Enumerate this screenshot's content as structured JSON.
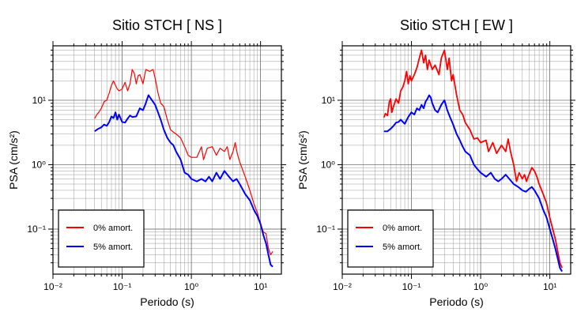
{
  "chart_data": [
    {
      "type": "line",
      "title": "Sitio STCH [ NS ]",
      "xlabel": "Periodo (s)",
      "ylabel": "PSA (cm/s²)",
      "xscale": "log",
      "yscale": "log",
      "xlim": [
        0.01,
        20
      ],
      "ylim": [
        0.02,
        70
      ],
      "x_tick_labels": [
        "10⁻²",
        "10⁻¹",
        "10⁰",
        "10¹"
      ],
      "x_tick_values": [
        0.01,
        0.1,
        1,
        10
      ],
      "y_tick_labels": [
        "10⁻¹",
        "10⁰",
        "10¹"
      ],
      "y_tick_values": [
        0.1,
        1,
        10
      ],
      "grid": true,
      "legend_position": "bottom-left",
      "series": [
        {
          "name": "0% amort.",
          "color": "#ff0000",
          "points": [
            [
              0.04,
              5.2
            ],
            [
              0.043,
              6.0
            ],
            [
              0.046,
              6.5
            ],
            [
              0.05,
              7.5
            ],
            [
              0.055,
              9.5
            ],
            [
              0.06,
              10
            ],
            [
              0.065,
              13
            ],
            [
              0.07,
              17
            ],
            [
              0.075,
              20
            ],
            [
              0.08,
              17
            ],
            [
              0.085,
              15
            ],
            [
              0.09,
              14
            ],
            [
              0.1,
              15
            ],
            [
              0.11,
              19
            ],
            [
              0.12,
              14
            ],
            [
              0.13,
              18
            ],
            [
              0.14,
              30
            ],
            [
              0.15,
              26
            ],
            [
              0.16,
              18
            ],
            [
              0.17,
              24
            ],
            [
              0.18,
              25
            ],
            [
              0.2,
              18
            ],
            [
              0.22,
              30
            ],
            [
              0.25,
              28
            ],
            [
              0.28,
              30
            ],
            [
              0.3,
              22
            ],
            [
              0.33,
              13
            ],
            [
              0.36,
              9
            ],
            [
              0.4,
              8
            ],
            [
              0.45,
              5
            ],
            [
              0.5,
              3.5
            ],
            [
              0.55,
              3.2
            ],
            [
              0.6,
              3
            ],
            [
              0.7,
              2.6
            ],
            [
              0.8,
              1.9
            ],
            [
              0.9,
              1.4
            ],
            [
              1.0,
              1.3
            ],
            [
              1.2,
              1.3
            ],
            [
              1.4,
              1.9
            ],
            [
              1.5,
              1.2
            ],
            [
              1.7,
              1.8
            ],
            [
              2.0,
              1.9
            ],
            [
              2.3,
              1.4
            ],
            [
              2.6,
              1.8
            ],
            [
              3.0,
              1.6
            ],
            [
              3.3,
              1.9
            ],
            [
              3.6,
              1.2
            ],
            [
              4.0,
              1.6
            ],
            [
              4.3,
              2.2
            ],
            [
              4.6,
              1.5
            ],
            [
              5.0,
              1.1
            ],
            [
              6.0,
              0.65
            ],
            [
              7.0,
              0.4
            ],
            [
              8.0,
              0.25
            ],
            [
              9.0,
              0.18
            ],
            [
              10.0,
              0.12
            ],
            [
              11.0,
              0.09
            ],
            [
              12.0,
              0.085
            ],
            [
              13.0,
              0.05
            ],
            [
              14.0,
              0.04
            ],
            [
              15.0,
              0.045
            ]
          ]
        },
        {
          "name": "5% amort.",
          "color": "#0000ff",
          "points": [
            [
              0.04,
              3.3
            ],
            [
              0.045,
              3.6
            ],
            [
              0.05,
              3.8
            ],
            [
              0.055,
              4.2
            ],
            [
              0.06,
              4.0
            ],
            [
              0.065,
              4.6
            ],
            [
              0.07,
              5.6
            ],
            [
              0.075,
              5.3
            ],
            [
              0.08,
              6.5
            ],
            [
              0.085,
              5.0
            ],
            [
              0.09,
              6.0
            ],
            [
              0.1,
              4.6
            ],
            [
              0.11,
              4.5
            ],
            [
              0.12,
              5.2
            ],
            [
              0.13,
              5.8
            ],
            [
              0.14,
              5.5
            ],
            [
              0.16,
              5.6
            ],
            [
              0.18,
              7.5
            ],
            [
              0.2,
              7.0
            ],
            [
              0.22,
              9.0
            ],
            [
              0.24,
              12
            ],
            [
              0.27,
              10
            ],
            [
              0.3,
              8.5
            ],
            [
              0.33,
              6.5
            ],
            [
              0.36,
              5
            ],
            [
              0.4,
              3.5
            ],
            [
              0.45,
              2.6
            ],
            [
              0.5,
              2.2
            ],
            [
              0.55,
              2.0
            ],
            [
              0.6,
              1.6
            ],
            [
              0.7,
              1.2
            ],
            [
              0.8,
              0.75
            ],
            [
              0.9,
              0.7
            ],
            [
              1.0,
              0.6
            ],
            [
              1.2,
              0.55
            ],
            [
              1.4,
              0.6
            ],
            [
              1.6,
              0.55
            ],
            [
              1.8,
              0.65
            ],
            [
              2.0,
              0.55
            ],
            [
              2.3,
              0.75
            ],
            [
              2.6,
              0.6
            ],
            [
              3.0,
              0.8
            ],
            [
              3.5,
              0.65
            ],
            [
              4.0,
              0.55
            ],
            [
              4.5,
              0.6
            ],
            [
              5.0,
              0.5
            ],
            [
              6.0,
              0.35
            ],
            [
              7.0,
              0.28
            ],
            [
              8.0,
              0.2
            ],
            [
              9.0,
              0.16
            ],
            [
              10.0,
              0.12
            ],
            [
              11.0,
              0.08
            ],
            [
              12.0,
              0.06
            ],
            [
              13.0,
              0.04
            ],
            [
              14.0,
              0.028
            ],
            [
              15.0,
              0.026
            ]
          ]
        }
      ]
    },
    {
      "type": "line",
      "title": "Sitio STCH [ EW ]",
      "xlabel": "Periodo (s)",
      "ylabel": "PSA (cm/s²)",
      "xscale": "log",
      "yscale": "log",
      "xlim": [
        0.01,
        20
      ],
      "ylim": [
        0.02,
        70
      ],
      "x_tick_labels": [
        "10⁻²",
        "10⁻¹",
        "10⁰",
        "10¹"
      ],
      "x_tick_values": [
        0.01,
        0.1,
        1,
        10
      ],
      "y_tick_labels": [
        "10⁻¹",
        "10⁰",
        "10¹"
      ],
      "y_tick_values": [
        0.1,
        1,
        10
      ],
      "grid": true,
      "legend_position": "bottom-left",
      "series": [
        {
          "name": "0% amort.",
          "color": "#ff0000",
          "points": [
            [
              0.04,
              5.4
            ],
            [
              0.042,
              6.2
            ],
            [
              0.045,
              5.8
            ],
            [
              0.048,
              9.5
            ],
            [
              0.05,
              10.5
            ],
            [
              0.052,
              6.5
            ],
            [
              0.055,
              8.0
            ],
            [
              0.06,
              10.5
            ],
            [
              0.065,
              9.0
            ],
            [
              0.07,
              14
            ],
            [
              0.075,
              16
            ],
            [
              0.08,
              20
            ],
            [
              0.085,
              28
            ],
            [
              0.09,
              18
            ],
            [
              0.095,
              24
            ],
            [
              0.1,
              20
            ],
            [
              0.11,
              25
            ],
            [
              0.12,
              32
            ],
            [
              0.13,
              45
            ],
            [
              0.14,
              60
            ],
            [
              0.15,
              38
            ],
            [
              0.16,
              50
            ],
            [
              0.17,
              30
            ],
            [
              0.18,
              42
            ],
            [
              0.2,
              30
            ],
            [
              0.22,
              35
            ],
            [
              0.25,
              25
            ],
            [
              0.27,
              45
            ],
            [
              0.3,
              60
            ],
            [
              0.33,
              30
            ],
            [
              0.35,
              45
            ],
            [
              0.38,
              20
            ],
            [
              0.4,
              25
            ],
            [
              0.45,
              12
            ],
            [
              0.5,
              7
            ],
            [
              0.55,
              6
            ],
            [
              0.6,
              4.5
            ],
            [
              0.7,
              3.5
            ],
            [
              0.8,
              2.5
            ],
            [
              0.9,
              2.6
            ],
            [
              1.0,
              2.2
            ],
            [
              1.2,
              2.4
            ],
            [
              1.3,
              1.6
            ],
            [
              1.5,
              2.2
            ],
            [
              1.7,
              1.5
            ],
            [
              2.0,
              2.0
            ],
            [
              2.3,
              1.6
            ],
            [
              2.5,
              2.5
            ],
            [
              2.7,
              1.6
            ],
            [
              3.0,
              1.0
            ],
            [
              3.3,
              0.55
            ],
            [
              3.6,
              0.75
            ],
            [
              4.0,
              0.6
            ],
            [
              4.3,
              0.7
            ],
            [
              4.6,
              0.55
            ],
            [
              5.0,
              0.7
            ],
            [
              5.5,
              0.9
            ],
            [
              6.0,
              0.8
            ],
            [
              6.5,
              0.65
            ],
            [
              7.0,
              0.5
            ],
            [
              8.0,
              0.35
            ],
            [
              9.0,
              0.25
            ],
            [
              10.0,
              0.15
            ],
            [
              11.0,
              0.1
            ],
            [
              12.0,
              0.07
            ],
            [
              13.0,
              0.045
            ],
            [
              14.0,
              0.03
            ],
            [
              15.0,
              0.025
            ]
          ]
        },
        {
          "name": "5% amort.",
          "color": "#0000ff",
          "points": [
            [
              0.04,
              3.3
            ],
            [
              0.045,
              3.3
            ],
            [
              0.05,
              3.6
            ],
            [
              0.055,
              4.0
            ],
            [
              0.06,
              4.5
            ],
            [
              0.065,
              4.6
            ],
            [
              0.07,
              5.0
            ],
            [
              0.08,
              4.3
            ],
            [
              0.09,
              5.5
            ],
            [
              0.1,
              6.5
            ],
            [
              0.11,
              6.0
            ],
            [
              0.12,
              7.5
            ],
            [
              0.13,
              7.0
            ],
            [
              0.14,
              8.5
            ],
            [
              0.15,
              7.5
            ],
            [
              0.16,
              9.5
            ],
            [
              0.17,
              10.5
            ],
            [
              0.18,
              12
            ],
            [
              0.19,
              11
            ],
            [
              0.2,
              9.0
            ],
            [
              0.22,
              7.0
            ],
            [
              0.24,
              6.5
            ],
            [
              0.27,
              8.5
            ],
            [
              0.3,
              10
            ],
            [
              0.33,
              7.0
            ],
            [
              0.36,
              5.5
            ],
            [
              0.4,
              4.2
            ],
            [
              0.45,
              3.0
            ],
            [
              0.5,
              2.4
            ],
            [
              0.55,
              1.9
            ],
            [
              0.6,
              1.6
            ],
            [
              0.7,
              1.4
            ],
            [
              0.8,
              1.0
            ],
            [
              0.9,
              0.85
            ],
            [
              1.0,
              0.75
            ],
            [
              1.2,
              0.65
            ],
            [
              1.4,
              0.75
            ],
            [
              1.6,
              0.6
            ],
            [
              1.8,
              0.55
            ],
            [
              2.0,
              0.6
            ],
            [
              2.3,
              0.7
            ],
            [
              2.6,
              0.6
            ],
            [
              3.0,
              0.5
            ],
            [
              3.5,
              0.45
            ],
            [
              4.0,
              0.4
            ],
            [
              4.5,
              0.38
            ],
            [
              5.0,
              0.42
            ],
            [
              5.5,
              0.45
            ],
            [
              6.0,
              0.4
            ],
            [
              7.0,
              0.3
            ],
            [
              8.0,
              0.2
            ],
            [
              9.0,
              0.15
            ],
            [
              10.0,
              0.1
            ],
            [
              11.0,
              0.07
            ],
            [
              12.0,
              0.05
            ],
            [
              13.0,
              0.035
            ],
            [
              14.0,
              0.025
            ],
            [
              15.0,
              0.022
            ]
          ]
        }
      ]
    }
  ]
}
